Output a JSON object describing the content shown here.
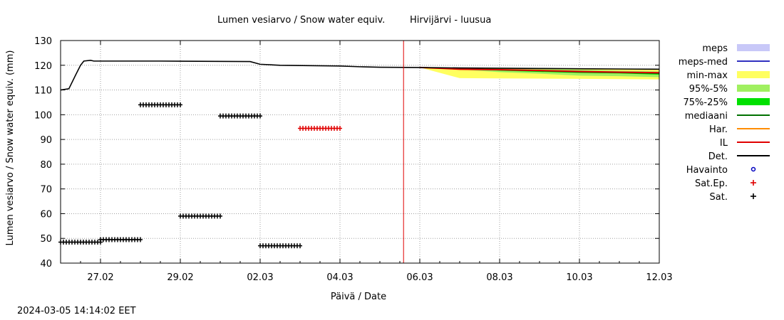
{
  "timestamp": "2024-03-05 14:14:02 EET",
  "chart_data": {
    "type": "line",
    "title": "Lumen vesiarvo / Snow water equiv.",
    "subtitle": "Hirvijärvi - luusua",
    "xlabel": "Päivä / Date",
    "ylabel": "Lumen vesiarvo / Snow water equiv. (mm)",
    "xlim": [
      "2024-02-26",
      "2024-03-12"
    ],
    "ylim": [
      40,
      130
    ],
    "yticks": [
      40,
      50,
      60,
      70,
      80,
      90,
      100,
      110,
      120,
      130
    ],
    "xticks": [
      {
        "date": "2024-02-27",
        "label": "27.02"
      },
      {
        "date": "2024-02-29",
        "label": "29.02"
      },
      {
        "date": "2024-03-02",
        "label": "02.03"
      },
      {
        "date": "2024-03-04",
        "label": "04.03"
      },
      {
        "date": "2024-03-06",
        "label": "06.03"
      },
      {
        "date": "2024-03-08",
        "label": "08.03"
      },
      {
        "date": "2024-03-10",
        "label": "10.03"
      },
      {
        "date": "2024-03-12",
        "label": "12.03"
      }
    ],
    "grid": true,
    "legend_position": "right",
    "current_time": "2024-03-05 14:14",
    "legend": [
      {
        "label": "meps",
        "color": "#c8c8f8",
        "style": "band"
      },
      {
        "label": "meps-med",
        "color": "#3030c0",
        "style": "line"
      },
      {
        "label": "min-max",
        "color": "#ffff60",
        "style": "band"
      },
      {
        "label": "95%-5%",
        "color": "#a0f060",
        "style": "band"
      },
      {
        "label": "75%-25%",
        "color": "#00e000",
        "style": "band"
      },
      {
        "label": "mediaani",
        "color": "#007000",
        "style": "line"
      },
      {
        "label": "Har.",
        "color": "#ff8c00",
        "style": "line"
      },
      {
        "label": "IL",
        "color": "#e00000",
        "style": "line"
      },
      {
        "label": "Det.",
        "color": "#000000",
        "style": "line"
      },
      {
        "label": "Havainto",
        "color": "#0000c0",
        "style": "circle"
      },
      {
        "label": "Sat.Ep.",
        "color": "#e00000",
        "style": "plus"
      },
      {
        "label": "Sat.",
        "color": "#000000",
        "style": "plus"
      }
    ],
    "series": [
      {
        "name": "Det.",
        "color": "#000000",
        "points": [
          [
            "2024-02-26 00:00",
            110
          ],
          [
            "2024-02-26 05:00",
            110.5
          ],
          [
            "2024-02-26 09:00",
            116
          ],
          [
            "2024-02-26 12:00",
            120
          ],
          [
            "2024-02-26 14:00",
            121.7
          ],
          [
            "2024-02-26 18:00",
            122
          ],
          [
            "2024-02-26 20:00",
            121.7
          ],
          [
            "2024-02-28 12:00",
            121.7
          ],
          [
            "2024-03-01 18:00",
            121.5
          ],
          [
            "2024-03-02 00:00",
            120.4
          ],
          [
            "2024-03-02 12:00",
            120
          ],
          [
            "2024-03-04 00:00",
            119.7
          ],
          [
            "2024-03-04 12:00",
            119.4
          ],
          [
            "2024-03-05 00:00",
            119.2
          ],
          [
            "2024-03-06 00:00",
            119.1
          ],
          [
            "2024-03-07 00:00",
            118.9
          ],
          [
            "2024-03-08 00:00",
            118.8
          ],
          [
            "2024-03-09 00:00",
            118.7
          ],
          [
            "2024-03-10 00:00",
            118.6
          ],
          [
            "2024-03-11 00:00",
            118.5
          ],
          [
            "2024-03-12 00:00",
            118.4
          ]
        ]
      },
      {
        "name": "Sat.",
        "color": "#000000",
        "style": "plus",
        "segments": [
          {
            "from": "2024-02-26 00:00",
            "to": "2024-02-27 00:00",
            "value": 48.5
          },
          {
            "from": "2024-02-27 00:00",
            "to": "2024-02-28 00:00",
            "value": 49.5
          },
          {
            "from": "2024-02-28 00:00",
            "to": "2024-02-29 00:00",
            "value": 104
          },
          {
            "from": "2024-02-29 00:00",
            "to": "2024-03-01 00:00",
            "value": 59
          },
          {
            "from": "2024-03-01 00:00",
            "to": "2024-03-02 00:00",
            "value": 99.5
          },
          {
            "from": "2024-03-02 00:00",
            "to": "2024-03-03 00:00",
            "value": 47
          }
        ]
      },
      {
        "name": "Sat.Ep.",
        "color": "#e00000",
        "style": "plus",
        "segments": [
          {
            "from": "2024-03-03 00:00",
            "to": "2024-03-04 00:00",
            "value": 94.5
          }
        ]
      },
      {
        "name": "min-max",
        "color": "#ffff60",
        "style": "band",
        "points": [
          [
            "2024-03-06 00:00",
            119.1,
            119.1
          ],
          [
            "2024-03-07 00:00",
            114.8,
            118.9
          ],
          [
            "2024-03-08 00:00",
            114.7,
            118.8
          ],
          [
            "2024-03-09 00:00",
            114.6,
            118.7
          ],
          [
            "2024-03-10 00:00",
            114.5,
            118.6
          ],
          [
            "2024-03-11 00:00",
            114.4,
            118.5
          ],
          [
            "2024-03-12 00:00",
            114.3,
            118.4
          ]
        ]
      },
      {
        "name": "95%-5%",
        "color": "#a0f060",
        "style": "band",
        "points": [
          [
            "2024-03-06 00:00",
            119.1,
            119.1
          ],
          [
            "2024-03-07 00:00",
            118.3,
            118.8
          ],
          [
            "2024-03-08 00:00",
            117.2,
            118.6
          ],
          [
            "2024-03-09 00:00",
            116.6,
            118.4
          ],
          [
            "2024-03-10 00:00",
            115.8,
            118.2
          ],
          [
            "2024-03-11 00:00",
            115.6,
            117.8
          ],
          [
            "2024-03-12 00:00",
            115.2,
            117.5
          ]
        ]
      },
      {
        "name": "75%-25%",
        "color": "#00e000",
        "style": "band",
        "points": [
          [
            "2024-03-06 00:00",
            119.1,
            119.1
          ],
          [
            "2024-03-07 00:00",
            118.4,
            118.7
          ],
          [
            "2024-03-08 00:00",
            117.8,
            118.4
          ],
          [
            "2024-03-09 00:00",
            117.3,
            118.0
          ],
          [
            "2024-03-10 00:00",
            116.9,
            117.5
          ],
          [
            "2024-03-11 00:00",
            116.7,
            117.3
          ],
          [
            "2024-03-12 00:00",
            116.2,
            117.1
          ]
        ]
      },
      {
        "name": "mediaani",
        "color": "#007000",
        "style": "line",
        "points": [
          [
            "2024-03-06 00:00",
            119.1
          ],
          [
            "2024-03-07 00:00",
            118.6
          ],
          [
            "2024-03-08 00:00",
            118.1
          ],
          [
            "2024-03-09 00:00",
            117.7
          ],
          [
            "2024-03-10 00:00",
            117.2
          ],
          [
            "2024-03-11 00:00",
            117.0
          ],
          [
            "2024-03-12 00:00",
            116.7
          ]
        ]
      },
      {
        "name": "IL",
        "color": "#e00000",
        "style": "line",
        "points": [
          [
            "2024-03-06 00:00",
            119.1
          ],
          [
            "2024-03-06 12:00",
            118.8
          ],
          [
            "2024-03-07 00:00",
            118.4
          ],
          [
            "2024-03-08 00:00",
            118.2
          ],
          [
            "2024-03-09 00:00",
            117.9
          ],
          [
            "2024-03-10 00:00",
            117.5
          ],
          [
            "2024-03-11 00:00",
            117.2
          ],
          [
            "2024-03-12 00:00",
            117.0
          ]
        ]
      }
    ]
  }
}
